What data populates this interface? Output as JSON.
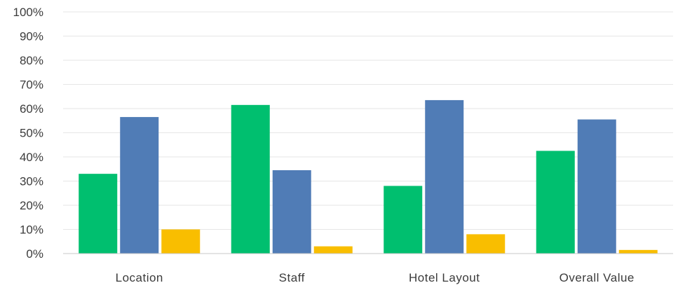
{
  "chart_data": {
    "type": "bar",
    "categories": [
      "Location",
      "Staff",
      "Hotel Layout",
      "Overall Value"
    ],
    "series": [
      {
        "color": "#00bf6f",
        "values": [
          33,
          61.5,
          28,
          42.5
        ]
      },
      {
        "color": "#507cb6",
        "values": [
          56.5,
          34.5,
          63.5,
          55.5
        ]
      },
      {
        "color": "#f9be00",
        "values": [
          10,
          3,
          8,
          1.5
        ]
      }
    ],
    "y_ticks": [
      "0%",
      "10%",
      "20%",
      "30%",
      "40%",
      "50%",
      "60%",
      "70%",
      "80%",
      "90%",
      "100%"
    ],
    "ylim": [
      0,
      100
    ],
    "grid": true,
    "legend": "none"
  }
}
